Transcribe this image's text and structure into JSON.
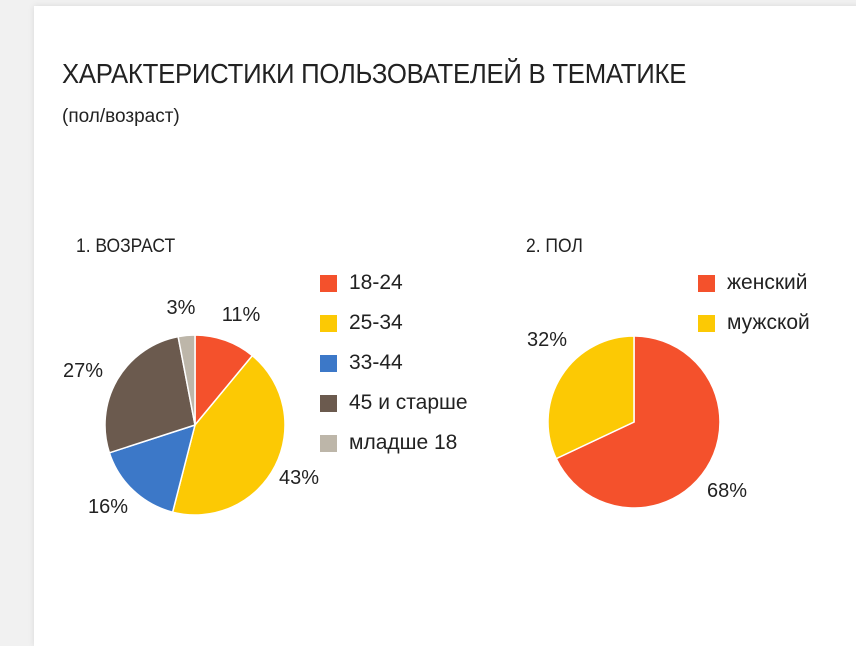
{
  "title": "ХАРАКТЕРИСТИКИ ПОЛЬЗОВАТЕЛЕЙ В ТЕМАТИКЕ",
  "subtitle": "(пол/возраст)",
  "chart_data": [
    {
      "type": "pie",
      "title": "1. ВОЗРАСТ",
      "categories": [
        "18-24",
        "25-34",
        "33-44",
        "45 и старше",
        "младше 18"
      ],
      "values": [
        11,
        43,
        16,
        27,
        3
      ],
      "value_labels": [
        "11%",
        "43%",
        "16%",
        "27%",
        "3%"
      ],
      "colors": [
        "#f4512c",
        "#fcc904",
        "#3c78c8",
        "#6b5a4e",
        "#bdb6a9"
      ],
      "legend": "right"
    },
    {
      "type": "pie",
      "title": "2. ПОЛ",
      "categories": [
        "женский",
        "мужской"
      ],
      "values": [
        68,
        32
      ],
      "value_labels": [
        "68%",
        "32%"
      ],
      "colors": [
        "#f4512c",
        "#fcc904"
      ],
      "legend": "right"
    }
  ]
}
